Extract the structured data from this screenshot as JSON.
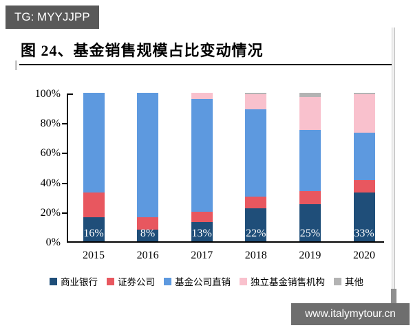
{
  "badges": {
    "tg": "TG: MYYJJPP",
    "watermark": "www.italymytour.cn"
  },
  "chart_data": {
    "type": "bar",
    "stacked": true,
    "title": "图 24、基金销售规模占比变动情况",
    "categories": [
      "2015",
      "2016",
      "2017",
      "2018",
      "2019",
      "2020"
    ],
    "series": [
      {
        "name": "商业银行",
        "color": "#1F4E79",
        "values": [
          16,
          8,
          13,
          22,
          25,
          33
        ]
      },
      {
        "name": "证券公司",
        "color": "#E8575F",
        "values": [
          17,
          8,
          7,
          8,
          9,
          8
        ]
      },
      {
        "name": "基金公司直销",
        "color": "#5D99DF",
        "values": [
          67,
          84,
          76,
          59,
          41,
          32
        ]
      },
      {
        "name": "独立基金销售机构",
        "color": "#F9C1CD",
        "values": [
          0,
          0,
          4,
          10,
          22,
          26
        ]
      },
      {
        "name": "其他",
        "color": "#B3B3B3",
        "values": [
          0,
          0,
          0,
          1,
          3,
          1
        ]
      }
    ],
    "bar_labels": [
      "16%",
      "8%",
      "13%",
      "22%",
      "25%",
      "33%"
    ],
    "yticks": [
      "0%",
      "20%",
      "40%",
      "60%",
      "80%",
      "100%"
    ],
    "ylim": [
      0,
      100
    ],
    "grid": false,
    "legend_position": "bottom",
    "bar_label_color": "#ffffff",
    "axis_color": "#000000"
  }
}
